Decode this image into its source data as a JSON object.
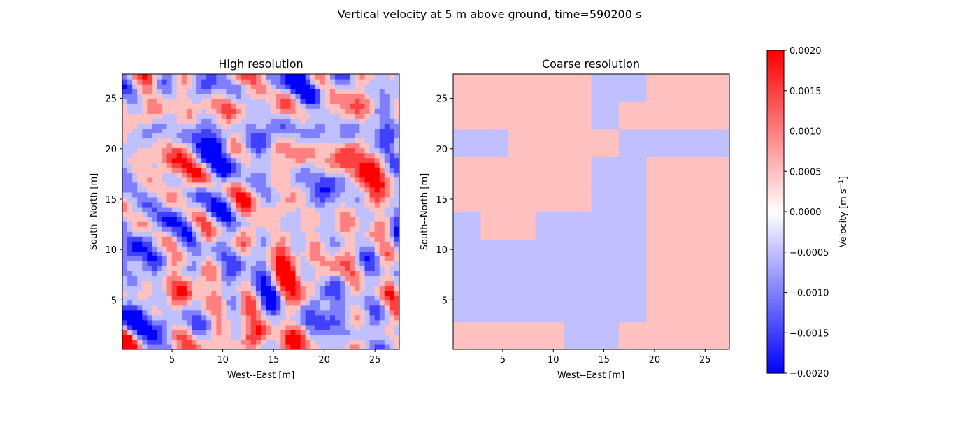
{
  "figure": {
    "suptitle": "Vertical velocity at 5 m above ground, time=590200 s"
  },
  "chart_data": [
    {
      "type": "heatmap",
      "title": "High resolution",
      "xlabel": "West--East [m]",
      "ylabel": "South--North [m]",
      "xlim": [
        0.1,
        27.4
      ],
      "ylim": [
        0.1,
        27.4
      ],
      "xticks": [
        5,
        10,
        15,
        20,
        25
      ],
      "yticks": [
        5,
        10,
        15,
        20,
        25
      ],
      "xtick_labels": [
        "5",
        "10",
        "15",
        "20",
        "25"
      ],
      "ytick_labels": [
        "5",
        "10",
        "15",
        "20",
        "25"
      ],
      "grid_n": 56,
      "field": {
        "seed": 7,
        "bias": -8e-05,
        "amplitude": 0.00105,
        "detail": "fine"
      }
    },
    {
      "type": "heatmap",
      "title": "Coarse resolution",
      "xlabel": "West--East [m]",
      "ylabel": "South--North [m]",
      "xlim": [
        0.1,
        27.4
      ],
      "ylim": [
        0.1,
        27.4
      ],
      "xticks": [
        5,
        10,
        15,
        20,
        25
      ],
      "yticks": [
        5,
        10,
        15,
        20,
        25
      ],
      "xtick_labels": [
        "5",
        "10",
        "15",
        "20",
        "25"
      ],
      "ytick_labels": [
        "5",
        "10",
        "15",
        "20",
        "25"
      ],
      "grid_n": 10,
      "values": [
        [
          0.00012,
          0.00022,
          0.00016,
          8e-05,
          -0.00012,
          -4e-05,
          8e-05,
          6e-05,
          0.00018,
          0.00012
        ],
        [
          -0.00018,
          -0.00026,
          -0.00024,
          -0.00022,
          -0.00012,
          -0.00012,
          -6e-05,
          8e-05,
          4e-05,
          0.00012
        ],
        [
          -0.00026,
          -0.00034,
          -0.00036,
          -0.00038,
          -0.0002,
          -0.00026,
          -4e-05,
          0.00012,
          0.00018,
          0.00034
        ],
        [
          -0.00024,
          -0.0003,
          -0.00038,
          -0.00034,
          -0.00026,
          -0.00038,
          -8e-05,
          8e-05,
          0.0002,
          0.00042
        ],
        [
          -0.00012,
          8e-05,
          4e-05,
          -0.00012,
          -0.00018,
          -8e-05,
          -4e-05,
          4e-05,
          0.00012,
          0.00018
        ],
        [
          0.0001,
          0.00032,
          0.00016,
          2e-05,
          0.00012,
          -8e-05,
          -4e-05,
          4e-05,
          8e-05,
          0.00016
        ],
        [
          0.00016,
          0.00046,
          0.00022,
          4e-05,
          6e-05,
          -4e-05,
          -4e-05,
          2e-05,
          6e-05,
          6e-05
        ],
        [
          -0.00018,
          -0.00024,
          4e-05,
          8e-05,
          4e-05,
          2e-05,
          -0.00012,
          -6e-05,
          -0.00022,
          -0.00016
        ],
        [
          0.00016,
          0.0002,
          0.00024,
          0.0002,
          6e-05,
          -2e-05,
          0.00014,
          0.00022,
          0.0002,
          0.00016
        ],
        [
          0.00018,
          0.00024,
          0.00036,
          0.00022,
          8e-05,
          -8e-05,
          -0.00016,
          0.00012,
          0.00018,
          0.00022
        ]
      ]
    }
  ],
  "colorbar": {
    "label_main": "Velocity [m s",
    "label_sup": "−1",
    "label_close": "]",
    "vmin": -0.002,
    "vmax": 0.002,
    "levels": [
      -0.002,
      -0.0015,
      -0.001,
      -0.0005,
      0.0,
      0.0005,
      0.001,
      0.0015,
      0.002
    ],
    "tick_labels": [
      "−0.0020",
      "−0.0015",
      "−0.0010",
      "−0.0005",
      "0.0000",
      "0.0005",
      "0.0010",
      "0.0015",
      "0.0020"
    ],
    "colormap": "bwr"
  }
}
